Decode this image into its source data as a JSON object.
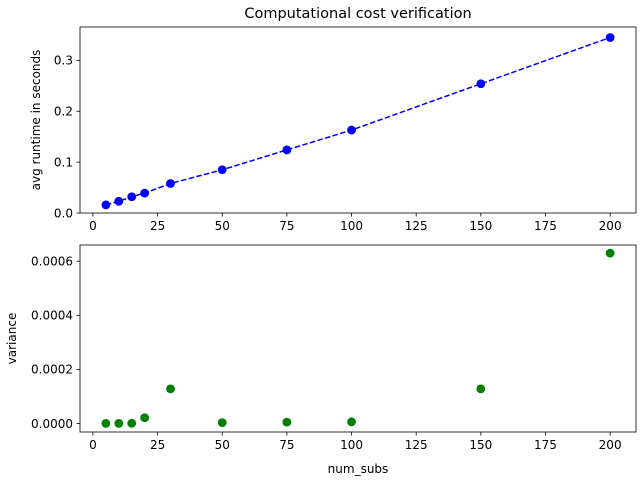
{
  "chart_data": [
    {
      "type": "line",
      "title": "Computational cost verification",
      "xlabel": "",
      "ylabel": "avg runtime in seconds",
      "xlim": [
        -5,
        210
      ],
      "ylim": [
        0,
        0.3656
      ],
      "xticks": [
        0,
        25,
        50,
        75,
        100,
        125,
        150,
        175,
        200
      ],
      "yticks": [
        0.0,
        0.1,
        0.2,
        0.3
      ],
      "ytick_labels": [
        "0.0",
        "0.1",
        "0.2",
        "0.3"
      ],
      "grid": false,
      "series": [
        {
          "color": "#0000ff",
          "line_style": "dashed",
          "marker": "circle",
          "x": [
            5,
            10,
            15,
            20,
            30,
            50,
            75,
            100,
            150,
            200
          ],
          "y": [
            0.016,
            0.023,
            0.032,
            0.039,
            0.058,
            0.085,
            0.124,
            0.163,
            0.254,
            0.345
          ]
        }
      ]
    },
    {
      "type": "scatter",
      "title": "",
      "xlabel": "num_subs",
      "ylabel": "variance",
      "xlim": [
        -5,
        210
      ],
      "ylim": [
        -3.16e-05,
        0.00066
      ],
      "xticks": [
        0,
        25,
        50,
        75,
        100,
        125,
        150,
        175,
        200
      ],
      "yticks": [
        0.0,
        0.0002,
        0.0004,
        0.0006
      ],
      "ytick_labels": [
        "0.0000",
        "0.0002",
        "0.0004",
        "0.0006"
      ],
      "grid": false,
      "series": [
        {
          "color": "#008000",
          "marker": "circle",
          "x": [
            5,
            10,
            15,
            20,
            30,
            50,
            75,
            100,
            150,
            200
          ],
          "y": [
            2e-07,
            3e-07,
            5e-07,
            2.1e-05,
            0.000128,
            3e-06,
            5e-06,
            6e-06,
            0.000128,
            0.00063
          ]
        }
      ]
    }
  ]
}
